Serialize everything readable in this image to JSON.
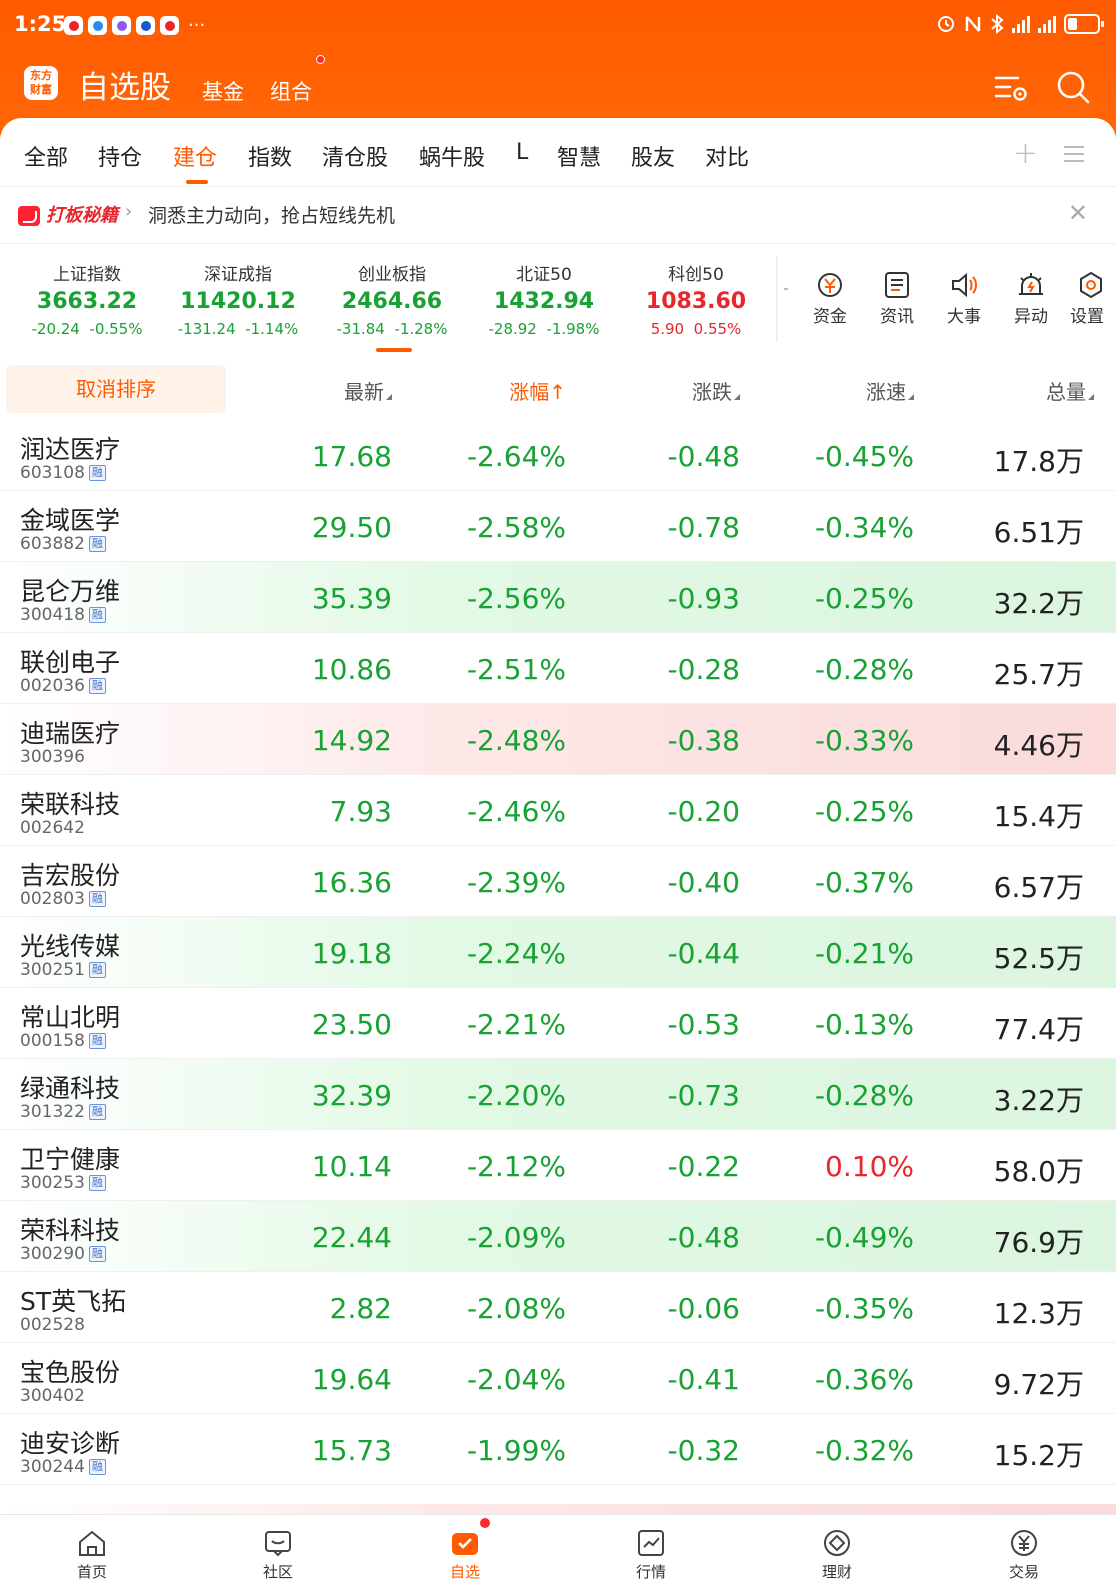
{
  "status_bar": {
    "time": "1:25",
    "more": "···"
  },
  "header": {
    "app_logo": "东方\n财富",
    "title": "自选股",
    "nav_fund": "基金",
    "nav_combo": "组合"
  },
  "tabs": [
    "全部",
    "持仓",
    "建仓",
    "指数",
    "清仓股",
    "蜗牛股",
    "L",
    "智慧",
    "股友",
    "对比"
  ],
  "active_tab": "建仓",
  "banner": {
    "tag": "打板秘籍",
    "text": "洞悉主力动向，抢占短线先机"
  },
  "indices": [
    {
      "name": "上证指数",
      "value": "3663.22",
      "change": "-20.24",
      "pct": "-0.55%",
      "trend": "down"
    },
    {
      "name": "深证成指",
      "value": "11420.12",
      "change": "-131.24",
      "pct": "-1.14%",
      "trend": "down"
    },
    {
      "name": "创业板指",
      "value": "2464.66",
      "change": "-31.84",
      "pct": "-1.28%",
      "trend": "down"
    },
    {
      "name": "北证50",
      "value": "1432.94",
      "change": "-28.92",
      "pct": "-1.98%",
      "trend": "down"
    },
    {
      "name": "科创50",
      "value": "1083.60",
      "change": "5.90",
      "pct": "0.55%",
      "trend": "up"
    }
  ],
  "tools": [
    "资金",
    "资讯",
    "大事",
    "异动",
    "设置"
  ],
  "sort_bar": {
    "cancel_label": "取消排序",
    "col_last": "最新",
    "col_pct": "涨幅",
    "col_pct_arrow": "↑",
    "col_chg": "涨跌",
    "col_speed": "涨速",
    "col_volume": "总量"
  },
  "stocks": [
    {
      "name": "润达医疗",
      "code": "603108",
      "margin": true,
      "last": "17.68",
      "pct": "-2.64%",
      "chg": "-0.48",
      "speed": "-0.45%",
      "speed_trend": "down",
      "volume": "17.8万",
      "highlight": "none"
    },
    {
      "name": "金域医学",
      "code": "603882",
      "margin": true,
      "last": "29.50",
      "pct": "-2.58%",
      "chg": "-0.78",
      "speed": "-0.34%",
      "speed_trend": "down",
      "volume": "6.51万",
      "highlight": "none"
    },
    {
      "name": "昆仑万维",
      "code": "300418",
      "margin": true,
      "last": "35.39",
      "pct": "-2.56%",
      "chg": "-0.93",
      "speed": "-0.25%",
      "speed_trend": "down",
      "volume": "32.2万",
      "highlight": "green"
    },
    {
      "name": "联创电子",
      "code": "002036",
      "margin": true,
      "last": "10.86",
      "pct": "-2.51%",
      "chg": "-0.28",
      "speed": "-0.28%",
      "speed_trend": "down",
      "volume": "25.7万",
      "highlight": "none"
    },
    {
      "name": "迪瑞医疗",
      "code": "300396",
      "margin": false,
      "last": "14.92",
      "pct": "-2.48%",
      "chg": "-0.38",
      "speed": "-0.33%",
      "speed_trend": "down",
      "volume": "4.46万",
      "highlight": "red"
    },
    {
      "name": "荣联科技",
      "code": "002642",
      "margin": false,
      "last": "7.93",
      "pct": "-2.46%",
      "chg": "-0.20",
      "speed": "-0.25%",
      "speed_trend": "down",
      "volume": "15.4万",
      "highlight": "none"
    },
    {
      "name": "吉宏股份",
      "code": "002803",
      "margin": true,
      "last": "16.36",
      "pct": "-2.39%",
      "chg": "-0.40",
      "speed": "-0.37%",
      "speed_trend": "down",
      "volume": "6.57万",
      "highlight": "none"
    },
    {
      "name": "光线传媒",
      "code": "300251",
      "margin": true,
      "last": "19.18",
      "pct": "-2.24%",
      "chg": "-0.44",
      "speed": "-0.21%",
      "speed_trend": "down",
      "volume": "52.5万",
      "highlight": "green"
    },
    {
      "name": "常山北明",
      "code": "000158",
      "margin": true,
      "last": "23.50",
      "pct": "-2.21%",
      "chg": "-0.53",
      "speed": "-0.13%",
      "speed_trend": "down",
      "volume": "77.4万",
      "highlight": "none"
    },
    {
      "name": "绿通科技",
      "code": "301322",
      "margin": true,
      "last": "32.39",
      "pct": "-2.20%",
      "chg": "-0.73",
      "speed": "-0.28%",
      "speed_trend": "down",
      "volume": "3.22万",
      "highlight": "green"
    },
    {
      "name": "卫宁健康",
      "code": "300253",
      "margin": true,
      "last": "10.14",
      "pct": "-2.12%",
      "chg": "-0.22",
      "speed": "0.10%",
      "speed_trend": "up",
      "volume": "58.0万",
      "highlight": "none"
    },
    {
      "name": "荣科科技",
      "code": "300290",
      "margin": true,
      "last": "22.44",
      "pct": "-2.09%",
      "chg": "-0.48",
      "speed": "-0.49%",
      "speed_trend": "down",
      "volume": "76.9万",
      "highlight": "green"
    },
    {
      "name": "ST英飞拓",
      "code": "002528",
      "margin": false,
      "last": "2.82",
      "pct": "-2.08%",
      "chg": "-0.06",
      "speed": "-0.35%",
      "speed_trend": "down",
      "volume": "12.3万",
      "highlight": "none"
    },
    {
      "name": "宝色股份",
      "code": "300402",
      "margin": false,
      "last": "19.64",
      "pct": "-2.04%",
      "chg": "-0.41",
      "speed": "-0.36%",
      "speed_trend": "down",
      "volume": "9.72万",
      "highlight": "none"
    },
    {
      "name": "迪安诊断",
      "code": "300244",
      "margin": true,
      "last": "15.73",
      "pct": "-1.99%",
      "chg": "-0.32",
      "speed": "-0.32%",
      "speed_trend": "down",
      "volume": "15.2万",
      "highlight": "none"
    }
  ],
  "margin_badge": "融",
  "bottom_nav": [
    "首页",
    "社区",
    "自选",
    "行情",
    "理财",
    "交易"
  ],
  "active_bottom": "自选",
  "colors": {
    "brand": "#ff5a00",
    "down": "#18a233",
    "up": "#e8262c"
  },
  "icons": [
    "search-icon",
    "settings-list-icon",
    "close-icon",
    "plus-icon",
    "menu-icon",
    "fund-flow-icon",
    "news-icon",
    "speaker-icon",
    "alert-icon",
    "settings-icon",
    "home-icon",
    "community-icon",
    "watchlist-icon",
    "market-icon",
    "wealth-icon",
    "trade-icon"
  ]
}
